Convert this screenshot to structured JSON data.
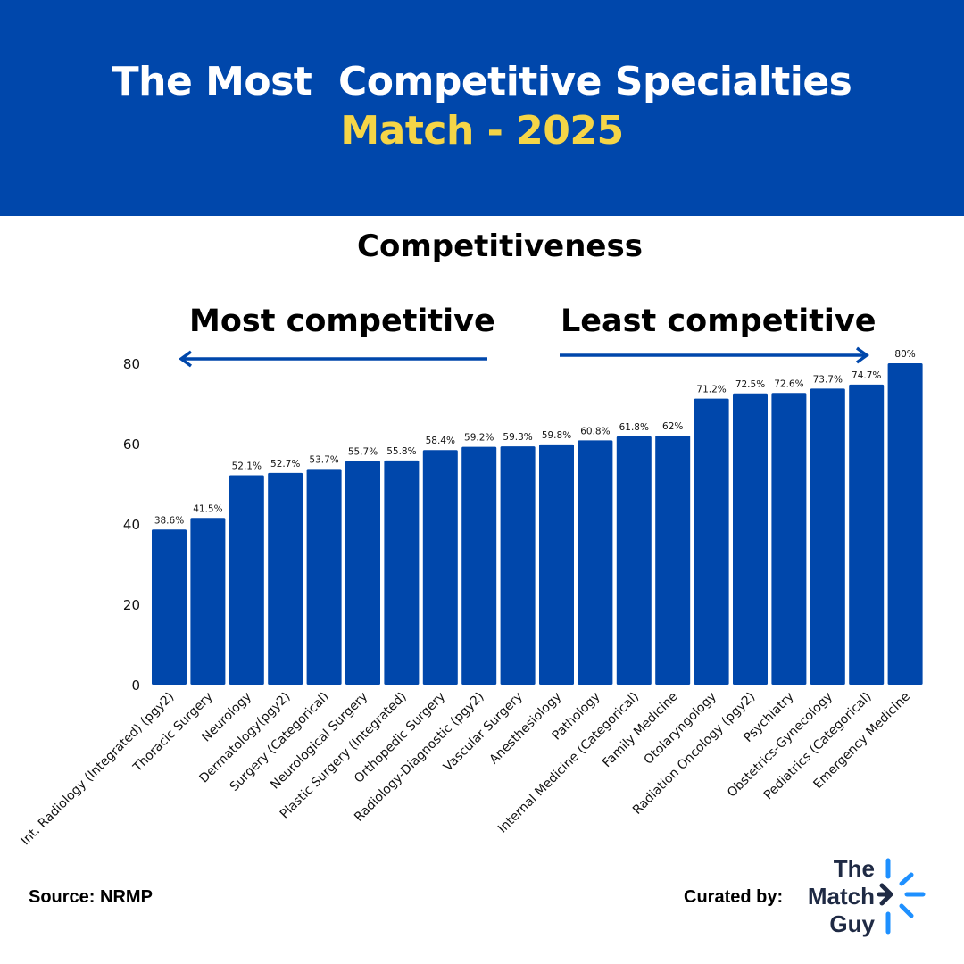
{
  "header": {
    "title_line1": "The Most  Competitive Specialties",
    "title_line2": "Match - 2025"
  },
  "colors": {
    "banner": "#0047AB",
    "bar": "#0047AB",
    "title_accent": "#F5D547",
    "arrow": "#0047AB",
    "logo_accent": "#1E90FF"
  },
  "annotations": {
    "most": "Most competitive",
    "least": "Least competitive"
  },
  "footer": {
    "source": "Source: NRMP",
    "curated_by": "Curated by:",
    "logo_lines": [
      "The",
      "Match",
      "Guy"
    ]
  },
  "chart_data": {
    "type": "bar",
    "title": "Competitiveness",
    "ylim": [
      0,
      80
    ],
    "yticks": [
      0,
      20,
      40,
      60,
      80
    ],
    "grid": false,
    "categories": [
      "Int. Radiology (Integrated) (pgy2)",
      "Thoracic Surgery",
      "Neurology",
      "Dermatology(pgy2)",
      "Surgery (Categorical)",
      "Neurological Surgery",
      "Plastic Surgery (Integrated)",
      "Orthopedic Surgery",
      "Radiology-Diagnostic (pgy2)",
      "Vascular Surgery",
      "Anesthesiology",
      "Pathology",
      "Internal Medicine (Categorical)",
      "Family Medicine",
      "Otolaryngology",
      "Radiation Oncology (pgy2)",
      "Psychiatry",
      "Obstetrics-Gynecology",
      "Pediatrics (Categorical)",
      "Emergency Medicine"
    ],
    "values": [
      38.6,
      41.5,
      52.1,
      52.7,
      53.7,
      55.7,
      55.8,
      58.4,
      59.2,
      59.3,
      59.8,
      60.8,
      61.8,
      62,
      71.2,
      72.5,
      72.6,
      73.7,
      74.7,
      80
    ],
    "data_labels": [
      "38.6%",
      "41.5%",
      "52.1%",
      "52.7%",
      "53.7%",
      "55.7%",
      "55.8%",
      "58.4%",
      "59.2%",
      "59.3%",
      "59.8%",
      "60.8%",
      "61.8%",
      "62%",
      "71.2%",
      "72.5%",
      "72.6%",
      "73.7%",
      "74.7%",
      "80%"
    ]
  }
}
